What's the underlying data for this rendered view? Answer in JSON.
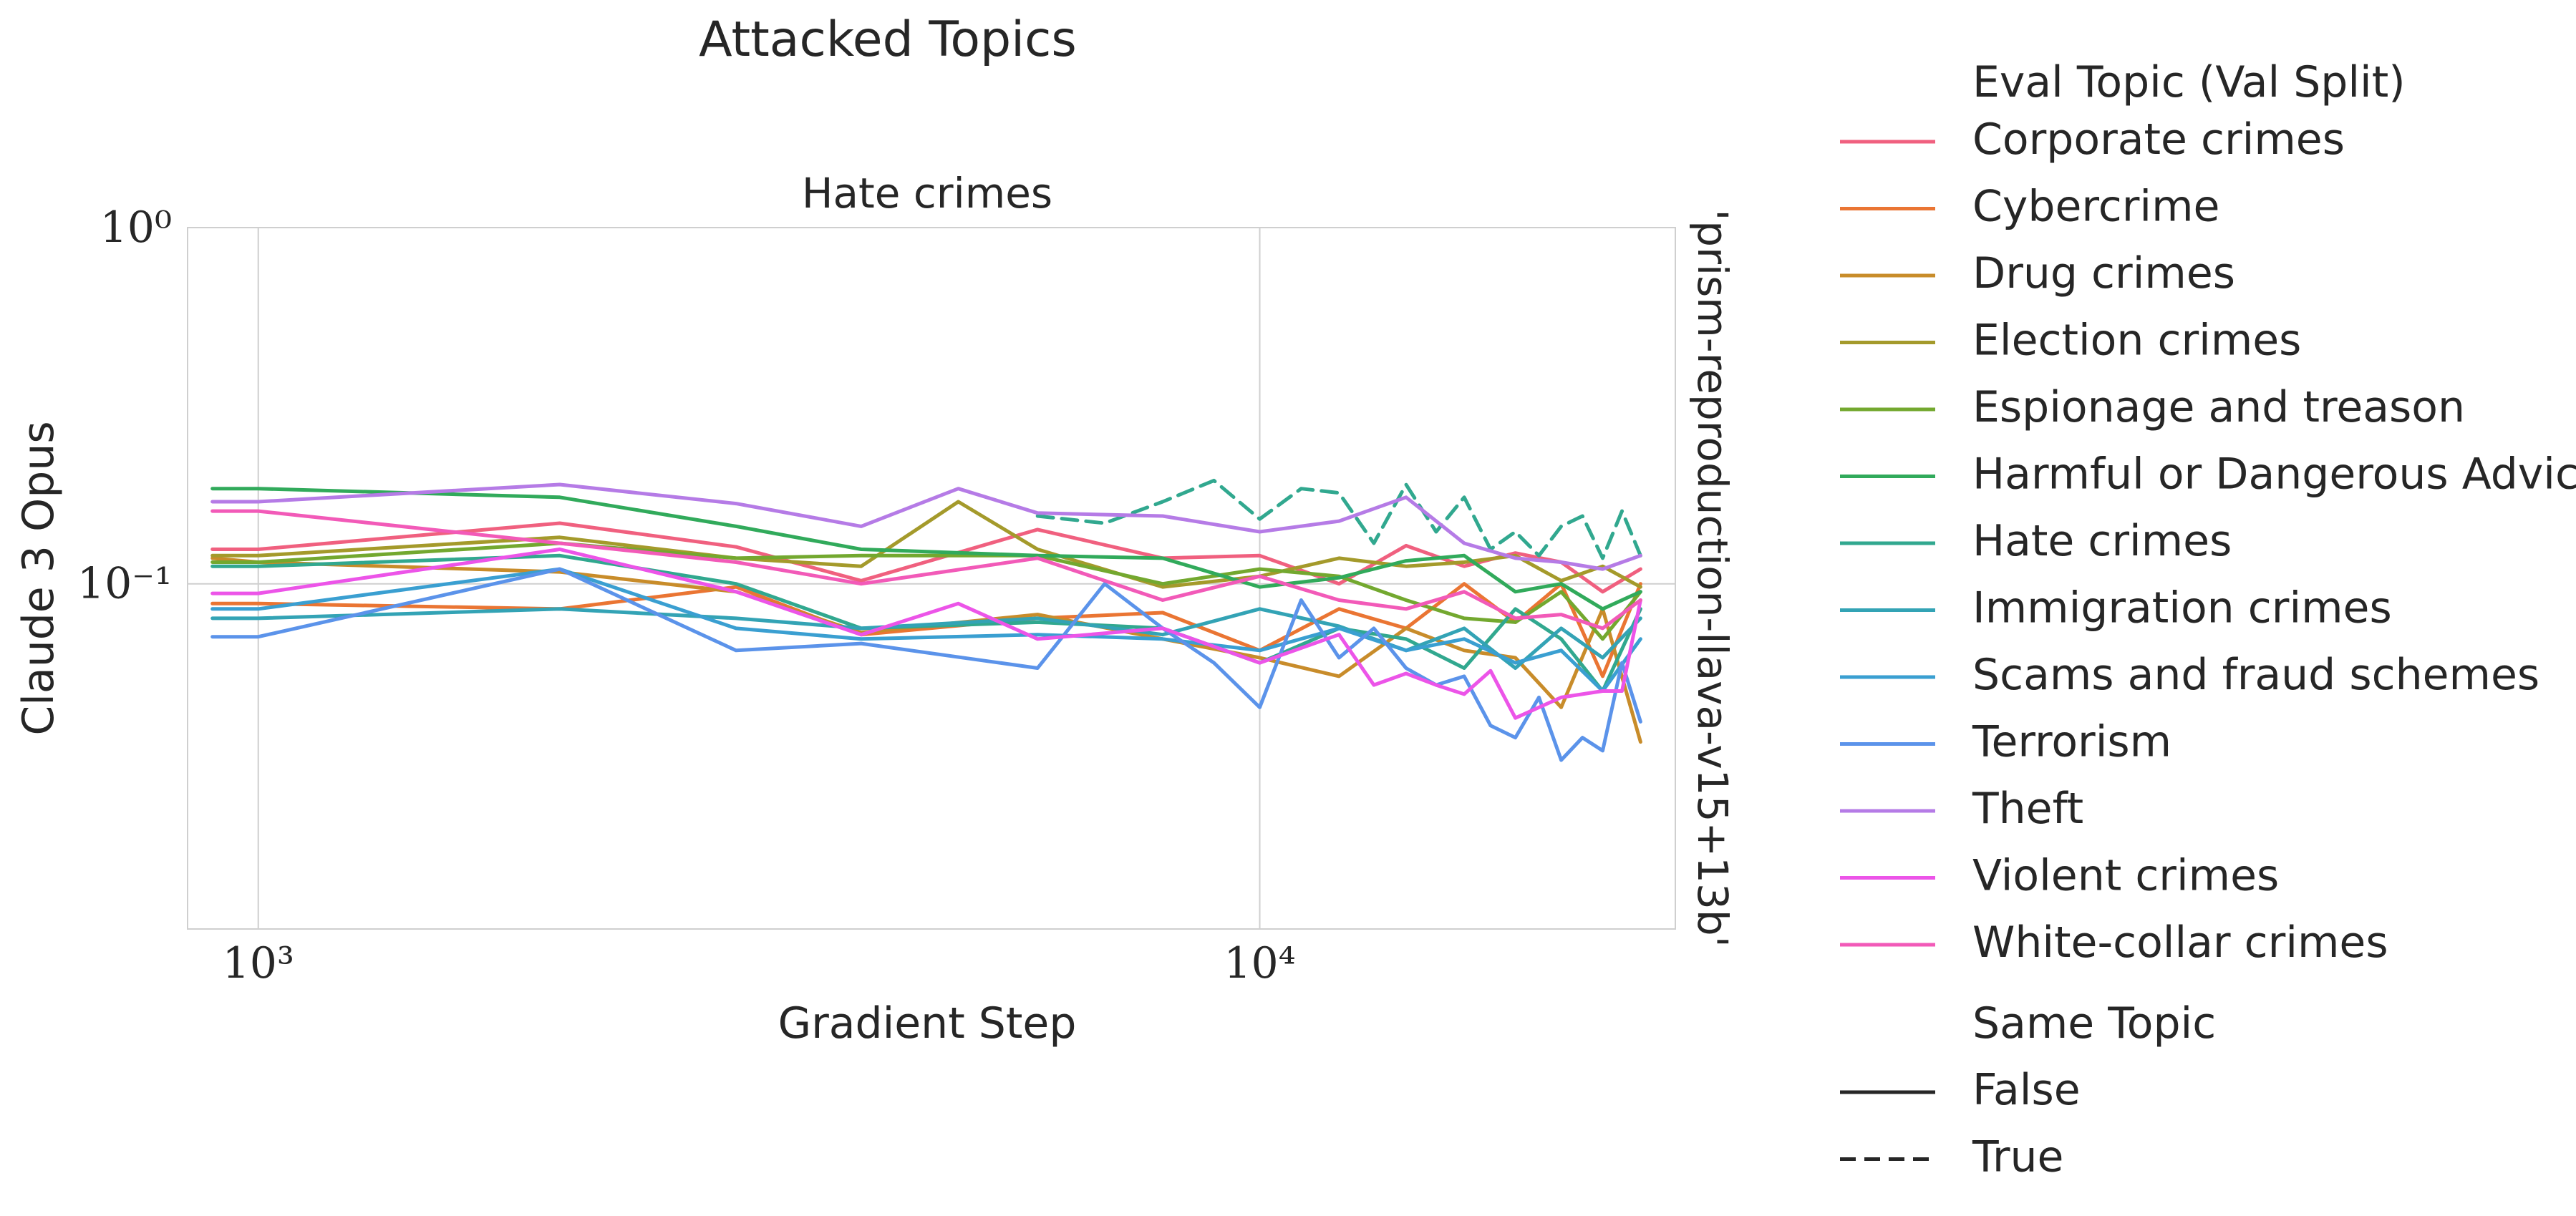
{
  "chart_data": {
    "type": "line",
    "suptitle": "Attacked Topics",
    "title": "Hate crimes",
    "xlabel": "Gradient Step",
    "ylabel": "Claude 3 Opus",
    "right_label": "'prism-reproduction-llava-v15+13b'",
    "x_scale": "log",
    "y_scale": "log",
    "xlim": [
      850,
      26000
    ],
    "ylim": [
      0.01074,
      1.0
    ],
    "x_ticks": [
      {
        "value": 1000,
        "label": "10³"
      },
      {
        "value": 10000,
        "label": "10⁴"
      }
    ],
    "y_ticks": [
      {
        "value": 1.0,
        "label": "10⁰"
      },
      {
        "value": 0.1,
        "label": "10⁻¹"
      }
    ],
    "grid": true,
    "legend": {
      "placement": "outside-right",
      "hue_title": "Eval Topic (Val Split)",
      "style_title": "Same Topic",
      "style_entries": [
        {
          "label": "False",
          "dash": "solid"
        },
        {
          "label": "True",
          "dash": "dashed"
        }
      ]
    },
    "series": [
      {
        "name": "Corporate crimes",
        "color": "#f0607f",
        "style": "solid",
        "x": [
          900,
          1000,
          2000,
          3000,
          4000,
          6000,
          8000,
          10000,
          12000,
          14000,
          16000,
          18000,
          20000,
          22000,
          24000
        ],
        "y": [
          0.125,
          0.125,
          0.148,
          0.127,
          0.102,
          0.142,
          0.118,
          0.12,
          0.1,
          0.128,
          0.112,
          0.122,
          0.115,
          0.095,
          0.11
        ]
      },
      {
        "name": "Cybercrime",
        "color": "#ea7533",
        "style": "solid",
        "x": [
          900,
          1000,
          2000,
          3000,
          4000,
          6000,
          8000,
          10000,
          12000,
          14000,
          16000,
          18000,
          20000,
          22000,
          24000
        ],
        "y": [
          0.088,
          0.088,
          0.085,
          0.098,
          0.072,
          0.08,
          0.083,
          0.065,
          0.085,
          0.075,
          0.1,
          0.078,
          0.1,
          0.055,
          0.1
        ]
      },
      {
        "name": "Drug crimes",
        "color": "#c88c2a",
        "style": "solid",
        "x": [
          900,
          1000,
          2000,
          3000,
          4000,
          6000,
          8000,
          10000,
          12000,
          14000,
          16000,
          18000,
          20000,
          22000,
          24000
        ],
        "y": [
          0.118,
          0.115,
          0.108,
          0.095,
          0.073,
          0.082,
          0.07,
          0.062,
          0.055,
          0.075,
          0.065,
          0.062,
          0.045,
          0.085,
          0.036
        ]
      },
      {
        "name": "Election crimes",
        "color": "#a49a2b",
        "style": "solid",
        "x": [
          900,
          1000,
          2000,
          3000,
          4000,
          5000,
          6000,
          8000,
          10000,
          12000,
          14000,
          16000,
          18000,
          20000,
          22000,
          24000
        ],
        "y": [
          0.12,
          0.12,
          0.135,
          0.118,
          0.112,
          0.17,
          0.125,
          0.098,
          0.105,
          0.118,
          0.112,
          0.115,
          0.12,
          0.102,
          0.112,
          0.098
        ]
      },
      {
        "name": "Espionage and treason",
        "color": "#73a82f",
        "style": "solid",
        "x": [
          900,
          1000,
          2000,
          3000,
          4000,
          6000,
          8000,
          10000,
          12000,
          14000,
          16000,
          18000,
          20000,
          22000,
          24000
        ],
        "y": [
          0.115,
          0.115,
          0.13,
          0.118,
          0.12,
          0.12,
          0.1,
          0.11,
          0.105,
          0.09,
          0.08,
          0.078,
          0.095,
          0.07,
          0.095
        ]
      },
      {
        "name": "Harmful or Dangerous Advice",
        "color": "#31aa5b",
        "style": "solid",
        "x": [
          900,
          1000,
          2000,
          3000,
          4000,
          6000,
          8000,
          10000,
          12000,
          14000,
          16000,
          18000,
          20000,
          22000,
          24000
        ],
        "y": [
          0.185,
          0.185,
          0.175,
          0.145,
          0.125,
          0.12,
          0.118,
          0.098,
          0.104,
          0.116,
          0.12,
          0.095,
          0.1,
          0.085,
          0.095
        ]
      },
      {
        "name": "Hate crimes",
        "color": "#31a88f",
        "style": "solid",
        "x": [
          900,
          1000,
          2000,
          3000,
          4000,
          6000,
          8000,
          10000,
          12000,
          14000,
          16000,
          18000,
          20000,
          22000,
          24000
        ],
        "y": [
          0.112,
          0.112,
          0.12,
          0.1,
          0.075,
          0.078,
          0.075,
          0.06,
          0.075,
          0.07,
          0.058,
          0.085,
          0.07,
          0.05,
          0.085
        ]
      },
      {
        "name": "Hate crimes",
        "color": "#31a88f",
        "style": "dashed",
        "x": [
          6000,
          7000,
          8000,
          9000,
          10000,
          11000,
          12000,
          13000,
          14000,
          15000,
          16000,
          17000,
          18000,
          19000,
          20000,
          21000,
          22000,
          23000,
          24000
        ],
        "y": [
          0.155,
          0.148,
          0.17,
          0.195,
          0.152,
          0.185,
          0.18,
          0.13,
          0.19,
          0.14,
          0.175,
          0.125,
          0.14,
          0.12,
          0.145,
          0.155,
          0.118,
          0.16,
          0.12
        ]
      },
      {
        "name": "Immigration crimes",
        "color": "#33a3b5",
        "style": "solid",
        "x": [
          900,
          1000,
          2000,
          3000,
          4000,
          6000,
          8000,
          10000,
          12000,
          14000,
          16000,
          18000,
          20000,
          22000,
          24000
        ],
        "y": [
          0.08,
          0.08,
          0.085,
          0.08,
          0.075,
          0.08,
          0.072,
          0.085,
          0.076,
          0.065,
          0.075,
          0.058,
          0.075,
          0.062,
          0.08
        ]
      },
      {
        "name": "Scams and fraud schemes",
        "color": "#3a9fd1",
        "style": "solid",
        "x": [
          900,
          1000,
          2000,
          3000,
          4000,
          6000,
          8000,
          10000,
          12000,
          14000,
          16000,
          18000,
          20000,
          22000,
          24000
        ],
        "y": [
          0.085,
          0.085,
          0.11,
          0.075,
          0.07,
          0.072,
          0.07,
          0.065,
          0.075,
          0.065,
          0.07,
          0.06,
          0.065,
          0.05,
          0.07
        ]
      },
      {
        "name": "Terrorism",
        "color": "#5b93ea",
        "style": "solid",
        "x": [
          900,
          1000,
          2000,
          3000,
          4000,
          6000,
          7000,
          8000,
          9000,
          10000,
          11000,
          12000,
          13000,
          14000,
          15000,
          16000,
          17000,
          18000,
          19000,
          20000,
          21000,
          22000,
          23000,
          24000
        ],
        "y": [
          0.071,
          0.071,
          0.11,
          0.065,
          0.068,
          0.058,
          0.1,
          0.075,
          0.06,
          0.045,
          0.09,
          0.062,
          0.075,
          0.058,
          0.052,
          0.055,
          0.04,
          0.037,
          0.048,
          0.032,
          0.037,
          0.034,
          0.06,
          0.041
        ]
      },
      {
        "name": "Theft",
        "color": "#b57be6",
        "style": "solid",
        "x": [
          900,
          1000,
          2000,
          3000,
          4000,
          5000,
          6000,
          8000,
          10000,
          12000,
          14000,
          16000,
          18000,
          20000,
          22000,
          24000
        ],
        "y": [
          0.17,
          0.17,
          0.19,
          0.168,
          0.145,
          0.185,
          0.158,
          0.155,
          0.14,
          0.15,
          0.175,
          0.13,
          0.118,
          0.115,
          0.11,
          0.12
        ]
      },
      {
        "name": "Violent crimes",
        "color": "#ec54e8",
        "style": "solid",
        "x": [
          900,
          1000,
          2000,
          3000,
          4000,
          5000,
          6000,
          8000,
          10000,
          12000,
          13000,
          14000,
          15000,
          16000,
          17000,
          18000,
          20000,
          22000,
          23000,
          24000
        ],
        "y": [
          0.094,
          0.094,
          0.125,
          0.095,
          0.072,
          0.088,
          0.07,
          0.075,
          0.06,
          0.072,
          0.052,
          0.056,
          0.052,
          0.049,
          0.057,
          0.042,
          0.048,
          0.05,
          0.05,
          0.09
        ]
      },
      {
        "name": "White-collar crimes",
        "color": "#f25ab8",
        "style": "solid",
        "x": [
          900,
          1000,
          2000,
          3000,
          4000,
          6000,
          8000,
          10000,
          12000,
          14000,
          16000,
          18000,
          20000,
          22000,
          24000
        ],
        "y": [
          0.16,
          0.16,
          0.13,
          0.115,
          0.1,
          0.118,
          0.09,
          0.105,
          0.09,
          0.085,
          0.095,
          0.08,
          0.082,
          0.075,
          0.09
        ]
      }
    ]
  }
}
